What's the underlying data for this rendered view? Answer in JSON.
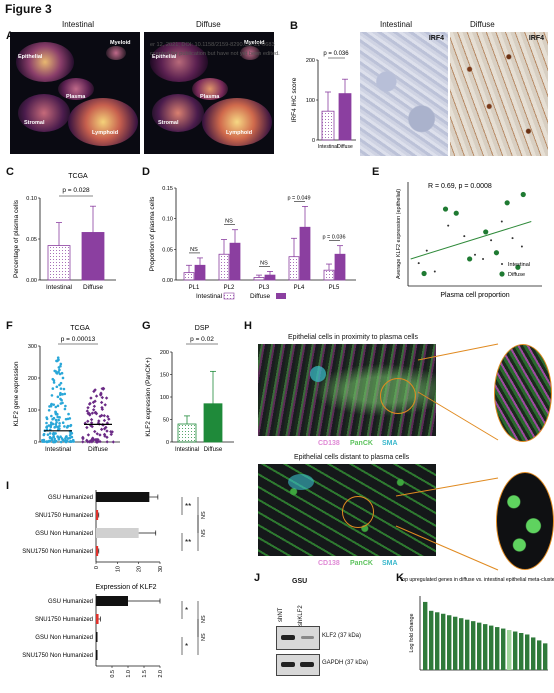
{
  "figure": {
    "title": "Figure 3"
  },
  "watermark": {
    "line1": "er 12, 2021; DOI: 10.1158/2159-8290.CD-21-0683",
    "line2": "ccepted for publication but have not yet been edited."
  },
  "panels": {
    "A": {
      "letter": "A",
      "left_title": "Intestinal",
      "right_title": "Diffuse",
      "clusters_left": [
        "Epithelial",
        "Myeloid",
        "Plasma",
        "Stromal",
        "Lymphoid"
      ],
      "clusters_right": [
        "Epithelial",
        "Myeloid",
        "Plasma",
        "Stromal",
        "Lymphoid"
      ]
    },
    "B": {
      "letter": "B",
      "left_title": "Intestinal",
      "right_title": "Diffuse",
      "stain_left": "IRF4",
      "stain_right": "IRF4"
    },
    "C": {
      "letter": "C"
    },
    "D": {
      "letter": "D"
    },
    "E": {
      "letter": "E"
    },
    "F": {
      "letter": "F"
    },
    "G": {
      "letter": "G"
    },
    "H": {
      "letter": "H"
    },
    "I": {
      "letter": "I"
    },
    "J": {
      "letter": "J"
    },
    "K": {
      "letter": "K"
    }
  },
  "panel_H": {
    "top_title": "Epithelial cells in proximity to plasma cells",
    "bottom_title": "Epithelial cells distant to plasma cells",
    "legend": [
      {
        "label": "CD138",
        "color": "#e08ad6"
      },
      {
        "label": "PanCK",
        "color": "#6fd36f"
      },
      {
        "label": "SMA",
        "color": "#4fc8d8"
      }
    ]
  },
  "panel_J": {
    "title": "GSU",
    "lanes": [
      "shNT",
      "shKLF2"
    ],
    "bands": [
      "KLF2 (37 kDa)",
      "GAPDH (37 kDa)"
    ]
  },
  "chart_data": [
    {
      "id": "B",
      "type": "bar",
      "ylabel": "IRF4 IHC score",
      "categories": [
        "Intestinal",
        "Diffuse"
      ],
      "values": [
        72,
        116
      ],
      "errors": [
        48,
        36
      ],
      "ylim": [
        0,
        200
      ],
      "yticks": [
        0,
        100,
        200
      ],
      "p_value": "p = 0.036",
      "colors": [
        "#ffffff",
        "#8b3fa0"
      ]
    },
    {
      "id": "C",
      "type": "bar",
      "title": "TCGA",
      "ylabel": "Percentage of plasma cells",
      "categories": [
        "Intestinal",
        "Diffuse"
      ],
      "values": [
        0.042,
        0.058
      ],
      "errors": [
        0.028,
        0.032
      ],
      "ylim": [
        0,
        0.1
      ],
      "yticks": [
        "0.00",
        "0.05",
        "0.10"
      ],
      "p_value": "p = 0.028",
      "colors": [
        "#ffffff",
        "#8b3fa0"
      ]
    },
    {
      "id": "D",
      "type": "bar",
      "ylabel": "Proportion of plasma cells",
      "categories": [
        "PL1",
        "PL2",
        "PL3",
        "PL4",
        "PL5"
      ],
      "series": [
        {
          "name": "Intestinal",
          "values": [
            0.012,
            0.042,
            0.004,
            0.038,
            0.016
          ],
          "errors": [
            0.012,
            0.024,
            0.004,
            0.03,
            0.01
          ],
          "color": "#ffffff"
        },
        {
          "name": "Diffuse",
          "values": [
            0.024,
            0.06,
            0.008,
            0.086,
            0.042
          ],
          "errors": [
            0.012,
            0.022,
            0.006,
            0.034,
            0.014
          ],
          "color": "#8b3fa0"
        }
      ],
      "ylim": [
        0,
        0.15
      ],
      "yticks": [
        "0.00",
        "0.05",
        "0.10",
        "0.15"
      ],
      "annotations": [
        "NS",
        "NS",
        "NS",
        "p = 0.049",
        "p = 0.036"
      ]
    },
    {
      "id": "E",
      "type": "scatter",
      "xlabel": "Plasma cell proportion",
      "ylabel": "Average KLF2 expression (epithelial)",
      "annotation": "R = 0.69, p = 0.0008",
      "legend": [
        "Intestinal",
        "Diffuse"
      ],
      "points_intestinal": [
        [
          0.08,
          0.22
        ],
        [
          0.14,
          0.34
        ],
        [
          0.2,
          0.14
        ],
        [
          0.3,
          0.58
        ],
        [
          0.42,
          0.48
        ],
        [
          0.5,
          0.3
        ],
        [
          0.56,
          0.26
        ],
        [
          0.62,
          0.44
        ],
        [
          0.7,
          0.62
        ],
        [
          0.78,
          0.46
        ],
        [
          0.85,
          0.38
        ]
      ],
      "points_diffuse": [
        [
          0.12,
          0.12
        ],
        [
          0.28,
          0.74
        ],
        [
          0.36,
          0.7
        ],
        [
          0.46,
          0.26
        ],
        [
          0.58,
          0.52
        ],
        [
          0.66,
          0.32
        ],
        [
          0.74,
          0.8
        ],
        [
          0.86,
          0.88
        ],
        [
          0.82,
          0.18
        ]
      ],
      "fit": [
        [
          0.02,
          0.26
        ],
        [
          0.92,
          0.62
        ]
      ]
    },
    {
      "id": "F",
      "type": "scatter",
      "title": "TCGA",
      "ylabel": "KLF2 gene expression",
      "categories": [
        "Intestinal",
        "Diffuse"
      ],
      "p_value": "p = 0.00013",
      "ylim": [
        0,
        300
      ],
      "yticks": [
        0,
        100,
        200,
        300
      ],
      "medians": [
        35,
        55
      ],
      "colors": [
        "#2aa7d8",
        "#6b2a86"
      ]
    },
    {
      "id": "G",
      "type": "bar",
      "title": "DSP",
      "ylabel": "KLF2 expression (PanCK+)",
      "categories": [
        "Intestinal",
        "Diffuse"
      ],
      "values": [
        40,
        85
      ],
      "errors": [
        18,
        72
      ],
      "ylim": [
        0,
        200
      ],
      "yticks": [
        0,
        50,
        100,
        150,
        200
      ],
      "p_value": "p = 0.02",
      "colors": [
        "#ffffff",
        "#1f8a3a"
      ]
    },
    {
      "id": "I-top",
      "type": "bar",
      "categories": [
        "GSU Humanized",
        "SNU1750 Humanized",
        "GSU Non Humanized",
        "SNU1750 Non Humanized"
      ],
      "values": [
        25,
        1,
        20,
        1
      ],
      "errors": [
        4,
        0.3,
        8,
        0.3
      ],
      "xlim": [
        0,
        30
      ],
      "xticks": [
        0,
        10,
        20,
        30
      ],
      "colors": [
        "#111111",
        "#e0322c",
        "#d0d0d0",
        "#e0322c"
      ],
      "sig": [
        "**",
        "**",
        "NS",
        "NS"
      ]
    },
    {
      "id": "I-bottom",
      "type": "bar",
      "title": "Expression of KLF2",
      "categories": [
        "GSU Humanized",
        "SNU1750 Humanized",
        "GSU Non Humanized",
        "SNU1750 Non Humanized"
      ],
      "values": [
        1.0,
        0.08,
        0.0,
        0.0
      ],
      "errors": [
        1.0,
        0.06,
        0,
        0
      ],
      "xlim": [
        0,
        2.0
      ],
      "xticks": [
        "0.5",
        "1.0",
        "1.5",
        "2.0"
      ],
      "colors": [
        "#111111",
        "#e0322c",
        "#111111",
        "#111111"
      ],
      "sig": [
        "*",
        "*",
        "NS",
        "NS"
      ]
    },
    {
      "id": "K",
      "type": "bar",
      "title": "Top upregulated genes in diffuse vs. intestinal epithelial meta-cluster",
      "ylabel": "Log fold change",
      "values": [
        4.6,
        4.0,
        3.9,
        3.8,
        3.7,
        3.6,
        3.5,
        3.4,
        3.3,
        3.2,
        3.1,
        3.0,
        2.9,
        2.8,
        2.7,
        2.6,
        2.5,
        2.4,
        2.2,
        2.0,
        1.8
      ],
      "highlight_index": 14,
      "colors": [
        "#2f7a3a",
        "#9fd49a"
      ]
    }
  ]
}
